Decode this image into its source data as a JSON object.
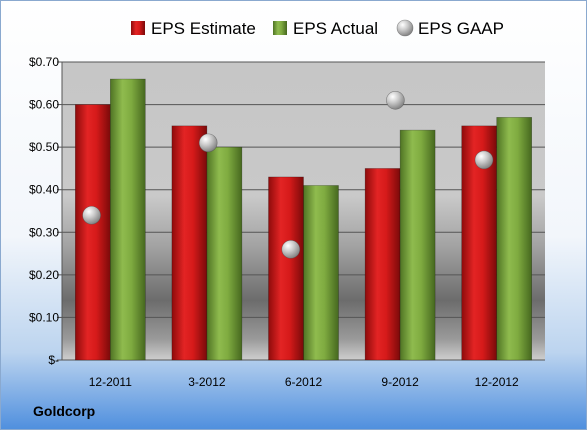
{
  "company": "Goldcorp",
  "legend": {
    "entries": [
      {
        "label": "EPS Estimate",
        "color": "#cc1111",
        "icon": "red-square-icon"
      },
      {
        "label": "EPS Actual",
        "color": "#77a33a",
        "icon": "green-square-icon"
      },
      {
        "label": "EPS GAAP",
        "color": "#b5b5b5",
        "icon": "gray-sphere-icon"
      }
    ],
    "placement": "top"
  },
  "chart_data": {
    "type": "bar",
    "title": "",
    "xlabel": "",
    "ylabel": "",
    "categories": [
      "12-2011",
      "3-2012",
      "6-2012",
      "9-2012",
      "12-2012"
    ],
    "series": [
      {
        "name": "EPS Estimate",
        "type": "bar",
        "color": "#cc1111",
        "values": [
          0.6,
          0.55,
          0.43,
          0.45,
          0.55
        ]
      },
      {
        "name": "EPS Actual",
        "type": "bar",
        "color": "#77a33a",
        "values": [
          0.66,
          0.5,
          0.41,
          0.54,
          0.57
        ]
      },
      {
        "name": "EPS GAAP",
        "type": "scatter",
        "color": "#b5b5b5",
        "values": [
          0.34,
          0.51,
          0.26,
          0.61,
          0.47
        ]
      }
    ],
    "ylim": [
      0,
      0.7
    ],
    "yticks": [
      0,
      0.1,
      0.2,
      0.3,
      0.4,
      0.5,
      0.6,
      0.7
    ],
    "ytick_labels": [
      "$-",
      "$0.10",
      "$0.20",
      "$0.30",
      "$0.40",
      "$0.50",
      "$0.60",
      "$0.70"
    ],
    "grid": true
  }
}
